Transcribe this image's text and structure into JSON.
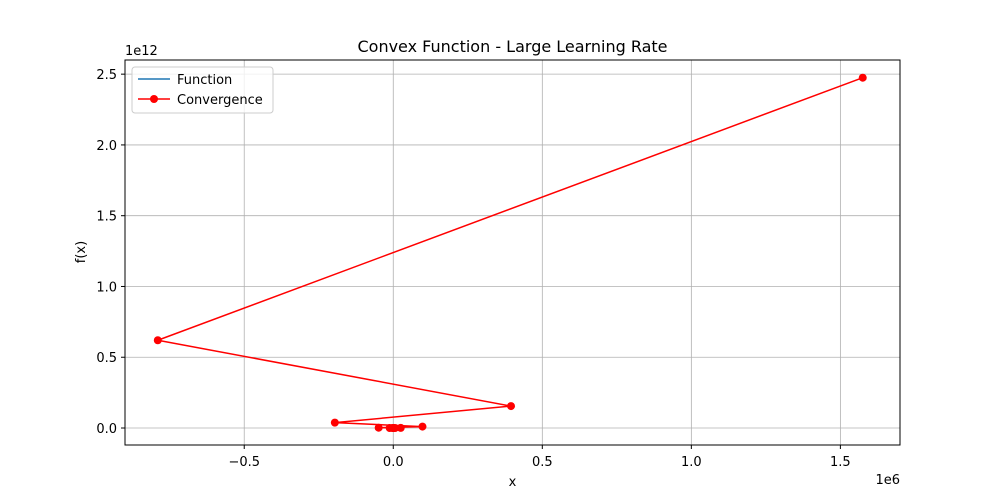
{
  "chart_data": {
    "type": "line",
    "title": "Convex Function - Large Learning Rate",
    "xlabel": "x",
    "ylabel": "f(x)",
    "x_scale_label": "1e6",
    "y_scale_label": "1e12",
    "x_scale": 1000000,
    "y_scale": 1000000000000,
    "xlim": [
      -0.9,
      1.7
    ],
    "ylim": [
      -0.12,
      2.6
    ],
    "xticks": [
      -0.5,
      0.0,
      0.5,
      1.0,
      1.5
    ],
    "xtick_labels": [
      "−0.5",
      "0.0",
      "0.5",
      "1.0",
      "1.5"
    ],
    "yticks": [
      0.0,
      0.5,
      1.0,
      1.5,
      2.0,
      2.5
    ],
    "ytick_labels": [
      "0.0",
      "0.5",
      "1.0",
      "1.5",
      "2.0",
      "2.5"
    ],
    "grid": true,
    "legend_position": "top-left",
    "series": [
      {
        "name": "Function",
        "color": "#1f77b4",
        "marker": "none",
        "x": [],
        "y": []
      },
      {
        "name": "Convergence",
        "color": "#ff0000",
        "marker": "circle",
        "x": [
          0.0,
          0.001,
          -0.002,
          0.006,
          -0.012,
          0.025,
          -0.049,
          0.098,
          -0.196,
          0.395,
          -0.79,
          1.575
        ],
        "y": [
          0.0,
          0.0,
          0.0,
          0.0,
          0.0,
          0.001,
          0.002,
          0.01,
          0.038,
          0.155,
          0.62,
          2.475
        ]
      }
    ]
  }
}
